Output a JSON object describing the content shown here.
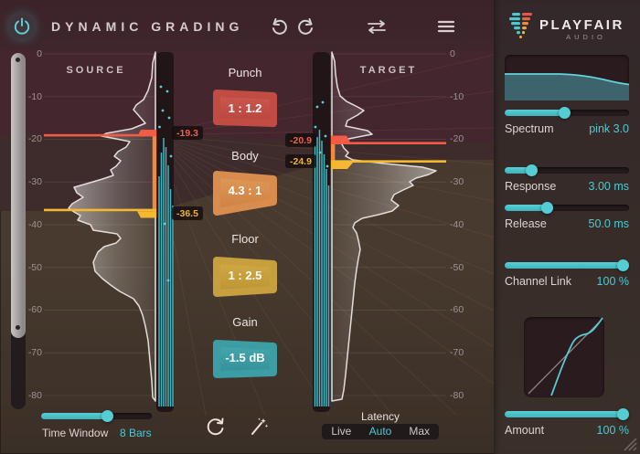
{
  "app": {
    "title": "DYNAMIC GRADING"
  },
  "brand": {
    "name": "PLAYFAIR",
    "sub": "AUDIO"
  },
  "meters": {
    "source": {
      "label": "SOURCE",
      "upper_value": "-19.3",
      "lower_value": "-36.5"
    },
    "target": {
      "label": "TARGET",
      "upper_value": "-20.9",
      "lower_value": "-24.9"
    },
    "scale_ticks": [
      "0",
      "-10",
      "-20",
      "-30",
      "-40",
      "-50",
      "-60",
      "-70",
      "-80"
    ]
  },
  "controls": [
    {
      "label": "Punch",
      "value": "1 : 1.2"
    },
    {
      "label": "Body",
      "value": "4.3 : 1"
    },
    {
      "label": "Floor",
      "value": "1 : 2.5"
    },
    {
      "label": "Gain",
      "value": "-1.5 dB"
    }
  ],
  "panel": {
    "spectrum": {
      "label": "Spectrum",
      "value": "pink 3.0"
    },
    "response": {
      "label": "Response",
      "value": "3.00 ms"
    },
    "release": {
      "label": "Release",
      "value": "50.0 ms"
    },
    "channel_link": {
      "label": "Channel Link",
      "value": "100 %"
    },
    "amount": {
      "label": "Amount",
      "value": "100 %"
    }
  },
  "footer": {
    "time_window": {
      "label": "Time Window",
      "value": "8 Bars"
    },
    "latency": {
      "label": "Latency",
      "options": [
        "Live",
        "Auto",
        "Max"
      ],
      "selected": "Auto"
    }
  },
  "colors": {
    "accent_teal": "#4fc9d1",
    "handle_red": "#f25c47",
    "handle_yellow": "#f5b82e",
    "connector_orange": "#f08a3e",
    "punch_box": "#c14c44",
    "body_box": "#d88c4d",
    "floor_box": "#c79f3d",
    "gain_box": "#3d9da4",
    "bg_maroon": "#43262e",
    "bg_olive": "#46382d"
  }
}
